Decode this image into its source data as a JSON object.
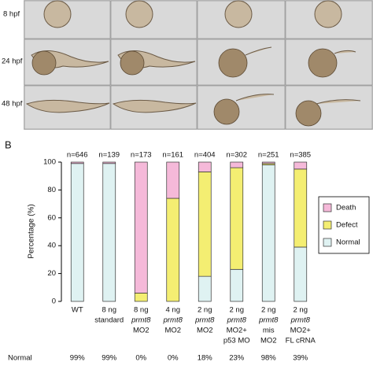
{
  "panel_a": {
    "rows": [
      "8 hpf",
      "24 hpf",
      "48 hpf"
    ]
  },
  "panel_b": {
    "label": "B"
  },
  "chart_data": {
    "type": "stacked_bar",
    "y_label": "Percentage (%)",
    "categories": [
      [
        "WT"
      ],
      [
        "8 ng",
        "standard"
      ],
      [
        "8 ng",
        "prmt8",
        "MO2"
      ],
      [
        "4 ng",
        "prmt8",
        "MO2"
      ],
      [
        "2 ng",
        "prmt8",
        "MO2"
      ],
      [
        "2 ng",
        "prmt8",
        "MO2+",
        "p53 MO"
      ],
      [
        "2 ng",
        "prmt8",
        "mis",
        "MO2"
      ],
      [
        "2 ng",
        "prmt8",
        "MO2+",
        "FL cRNA"
      ]
    ],
    "n_labels": [
      "n=646",
      "n=139",
      "n=173",
      "n=161",
      "n=404",
      "n=302",
      "n=251",
      "n=385"
    ],
    "series": [
      {
        "name": "Normal",
        "color": "#dff2f2",
        "values": [
          99,
          99,
          0,
          0,
          18,
          23,
          98,
          39
        ],
        "value_labels": [
          "99%",
          "99%",
          "0%",
          "0%",
          "18%",
          "23%",
          "98%",
          "39%"
        ]
      },
      {
        "name": "Defect",
        "color": "#f4ee72",
        "values": [
          0,
          0,
          6,
          74,
          75,
          73,
          1,
          56
        ]
      },
      {
        "name": "Death",
        "color": "#f5b9d9",
        "values": [
          1,
          1,
          94,
          26,
          7,
          4,
          1,
          5
        ]
      }
    ],
    "ylim": [
      0,
      100
    ],
    "yticks": [
      0,
      20,
      40,
      60,
      80,
      100
    ],
    "legend": "right"
  }
}
